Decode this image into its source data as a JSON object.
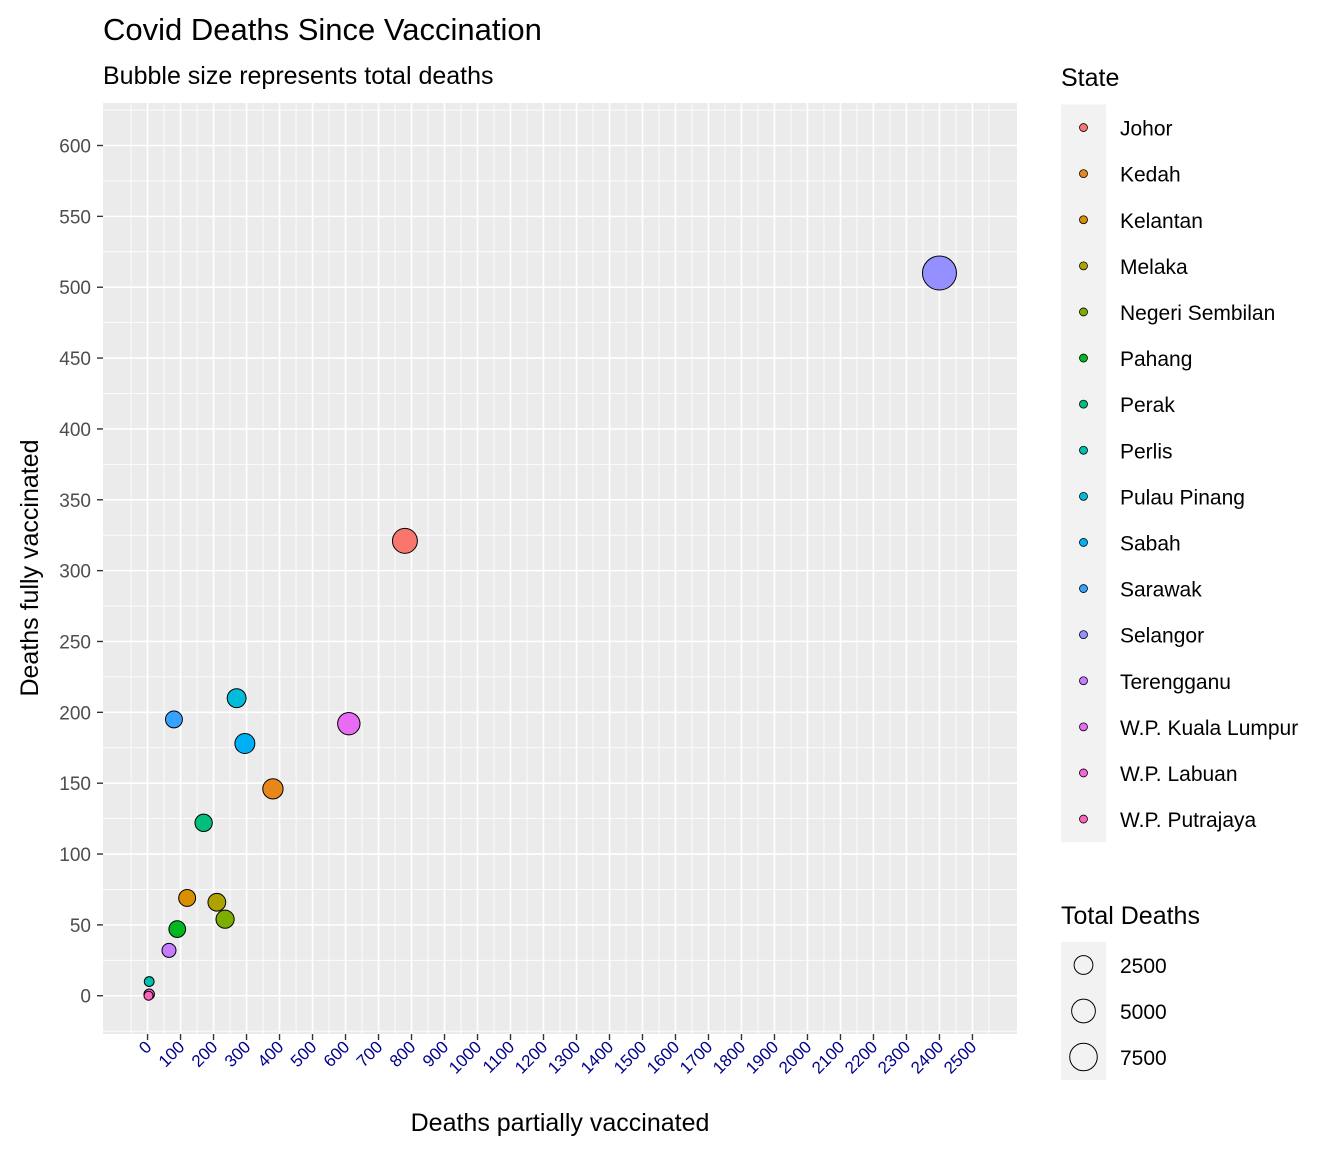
{
  "chart_data": {
    "type": "scatter",
    "title": "Covid Deaths Since Vaccination",
    "subtitle": "Bubble size represents total deaths",
    "xlabel": "Deaths partially vaccinated",
    "ylabel": "Deaths fully vaccinated",
    "xlim": [
      -135,
      2635
    ],
    "ylim": [
      -27,
      630
    ],
    "x_ticks": [
      0,
      100,
      200,
      300,
      400,
      500,
      600,
      700,
      800,
      900,
      1000,
      1100,
      1200,
      1300,
      1400,
      1500,
      1600,
      1700,
      1800,
      1900,
      2000,
      2100,
      2200,
      2300,
      2400,
      2500
    ],
    "x_tick_color": "#00008b",
    "y_ticks": [
      0,
      50,
      100,
      150,
      200,
      250,
      300,
      350,
      400,
      450,
      500,
      550,
      600
    ],
    "grid": true,
    "panel_background": "#ebebeb",
    "color_legend": {
      "title": "State",
      "position": "right"
    },
    "size_legend": {
      "title": "Total Deaths",
      "breaks": [
        2500,
        5000,
        7500
      ]
    },
    "series": [
      {
        "name": "Johor",
        "color": "#F8766D",
        "x": 780,
        "y": 321,
        "total_deaths": 3600
      },
      {
        "name": "Kedah",
        "color": "#E7861B",
        "x": 380,
        "y": 146,
        "total_deaths": 1900
      },
      {
        "name": "Kelantan",
        "color": "#D89000",
        "x": 120,
        "y": 69,
        "total_deaths": 1000
      },
      {
        "name": "Melaka",
        "color": "#AEA200",
        "x": 210,
        "y": 66,
        "total_deaths": 1200
      },
      {
        "name": "Negeri Sembilan",
        "color": "#7CAE00",
        "x": 235,
        "y": 54,
        "total_deaths": 1300
      },
      {
        "name": "Pahang",
        "color": "#00B81F",
        "x": 90,
        "y": 47,
        "total_deaths": 950
      },
      {
        "name": "Perak",
        "color": "#00BF7D",
        "x": 170,
        "y": 122,
        "total_deaths": 1100
      },
      {
        "name": "Perlis",
        "color": "#00C0AF",
        "x": 5,
        "y": 10,
        "total_deaths": 40
      },
      {
        "name": "Pulau Pinang",
        "color": "#00BCD8",
        "x": 270,
        "y": 210,
        "total_deaths": 1500
      },
      {
        "name": "Sabah",
        "color": "#00B0F6",
        "x": 295,
        "y": 178,
        "total_deaths": 1800
      },
      {
        "name": "Sarawak",
        "color": "#35A2FF",
        "x": 80,
        "y": 195,
        "total_deaths": 1000
      },
      {
        "name": "Selangor",
        "color": "#9590FF",
        "x": 2400,
        "y": 510,
        "total_deaths": 8500
      },
      {
        "name": "Terengganu",
        "color": "#C77CFF",
        "x": 65,
        "y": 32,
        "total_deaths": 450
      },
      {
        "name": "W.P. Kuala Lumpur",
        "color": "#E76BF3",
        "x": 610,
        "y": 192,
        "total_deaths": 2600
      },
      {
        "name": "W.P. Labuan",
        "color": "#FA62DB",
        "x": 5,
        "y": 1,
        "total_deaths": 80
      },
      {
        "name": "W.P. Putrajaya",
        "color": "#FF62BC",
        "x": 3,
        "y": 0,
        "total_deaths": 15
      }
    ]
  }
}
